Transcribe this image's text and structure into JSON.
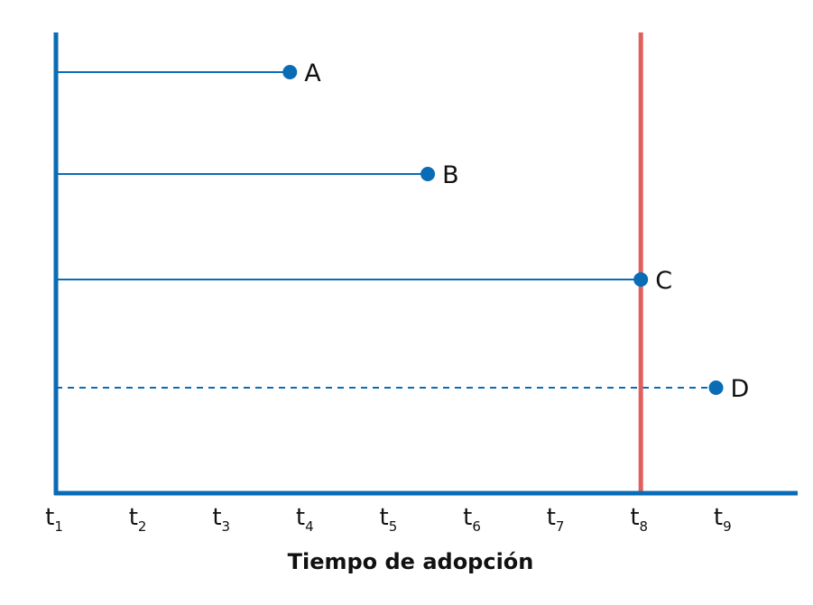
{
  "colors": {
    "axis": "#0A6CB5",
    "series": "#0A6CB5",
    "marker": "#0A6CB5",
    "cutoff": "#E0605C"
  },
  "x_axis": {
    "title": "Tiempo de adopción",
    "ticks": [
      {
        "base": "t",
        "sub": "1"
      },
      {
        "base": "t",
        "sub": "2"
      },
      {
        "base": "t",
        "sub": "3"
      },
      {
        "base": "t",
        "sub": "4"
      },
      {
        "base": "t",
        "sub": "5"
      },
      {
        "base": "t",
        "sub": "6"
      },
      {
        "base": "t",
        "sub": "7"
      },
      {
        "base": "t",
        "sub": "8"
      },
      {
        "base": "t",
        "sub": "9"
      }
    ]
  },
  "chart_data": {
    "type": "timeline",
    "x_range": [
      1,
      9.9
    ],
    "cutoff_time": 8,
    "items": [
      {
        "label": "A",
        "start": 1,
        "end": 3.8,
        "style": "solid"
      },
      {
        "label": "B",
        "start": 1,
        "end": 5.45,
        "style": "solid"
      },
      {
        "label": "C",
        "start": 1,
        "end": 8,
        "style": "solid"
      },
      {
        "label": "D",
        "start": 1,
        "end": 8.9,
        "style": "dashed"
      }
    ]
  }
}
